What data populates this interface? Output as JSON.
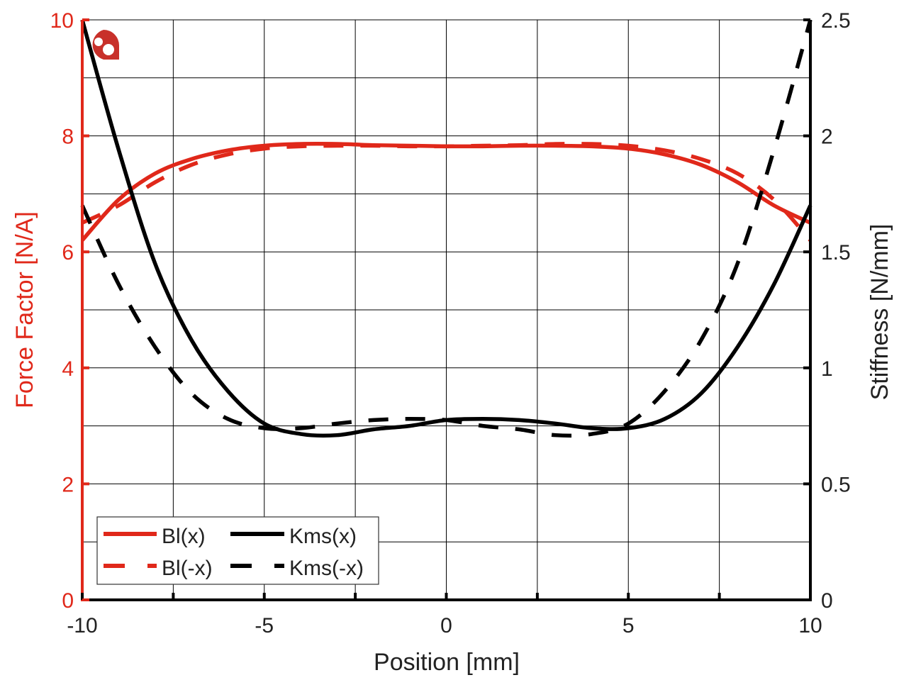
{
  "chart_data": {
    "type": "line",
    "title": "",
    "xlabel": "Position [mm]",
    "ylabel_left": "Force Factor [N/A]",
    "ylabel_right": "Stiffness [N/mm]",
    "xlim": [
      -10,
      10
    ],
    "ylim_left": [
      0,
      10
    ],
    "ylim_right": [
      0,
      2.5
    ],
    "x_ticks": [
      "-10",
      "-5",
      "0",
      "5",
      "10"
    ],
    "y_ticks_left": [
      "0",
      "2",
      "4",
      "6",
      "8",
      "10"
    ],
    "y_ticks_right": [
      "0",
      "0.5",
      "1",
      "1.5",
      "2",
      "2.5"
    ],
    "grid": true,
    "legend_placement": "bottom-left",
    "colors": {
      "left_axis": "#e0281a",
      "bl": "#e0281a",
      "kms": "#000000"
    },
    "x": [
      -10,
      -9,
      -8,
      -7,
      -6,
      -5,
      -4,
      -3,
      -2,
      -1,
      0,
      1,
      2,
      3,
      4,
      5,
      6,
      7,
      8,
      9,
      10
    ],
    "series": [
      {
        "name": "Bl(x)",
        "axis": "left",
        "style": "solid",
        "color": "#e0281a",
        "values": [
          6.2,
          6.9,
          7.35,
          7.6,
          7.75,
          7.83,
          7.86,
          7.86,
          7.84,
          7.83,
          7.82,
          7.82,
          7.83,
          7.83,
          7.82,
          7.78,
          7.68,
          7.5,
          7.2,
          6.8,
          6.5
        ]
      },
      {
        "name": "Bl(-x)",
        "axis": "left",
        "style": "dashed",
        "color": "#e0281a",
        "values": [
          6.5,
          6.8,
          7.2,
          7.5,
          7.68,
          7.78,
          7.82,
          7.83,
          7.83,
          7.82,
          7.82,
          7.83,
          7.84,
          7.86,
          7.86,
          7.83,
          7.75,
          7.6,
          7.35,
          6.9,
          6.2
        ]
      },
      {
        "name": "Kms(x)",
        "axis": "right",
        "style": "solid",
        "color": "#000000",
        "values": [
          2.5,
          1.94,
          1.45,
          1.12,
          0.9,
          0.76,
          0.715,
          0.71,
          0.735,
          0.75,
          0.775,
          0.78,
          0.775,
          0.76,
          0.74,
          0.74,
          0.78,
          0.89,
          1.09,
          1.36,
          1.7
        ]
      },
      {
        "name": "Kms(-x)",
        "axis": "right",
        "style": "dashed",
        "color": "#000000",
        "values": [
          1.7,
          1.36,
          1.09,
          0.89,
          0.78,
          0.74,
          0.74,
          0.76,
          0.775,
          0.78,
          0.775,
          0.75,
          0.735,
          0.71,
          0.715,
          0.76,
          0.9,
          1.12,
          1.45,
          1.94,
          2.5
        ]
      }
    ],
    "legend": [
      "Bl(x)",
      "Kms(x)",
      "Bl(-x)",
      "Kms(-x)"
    ]
  },
  "logo": {
    "icon": "red-badge-logo-icon",
    "color": "#c8302a"
  }
}
